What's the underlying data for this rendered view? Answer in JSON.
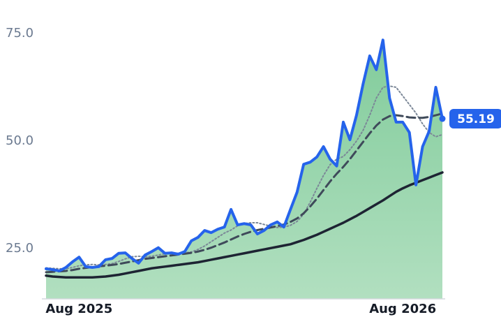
{
  "chart_data": {
    "type": "line",
    "categories": [
      null,
      null,
      null,
      null,
      null,
      "Aug 2025",
      null,
      null,
      null,
      null,
      null,
      null,
      null,
      null,
      null,
      null,
      null,
      null,
      null,
      null,
      null,
      null,
      null,
      null,
      null,
      null,
      null,
      null,
      null,
      null,
      null,
      null,
      null,
      null,
      null,
      null,
      null,
      null,
      null,
      null,
      null,
      null,
      null,
      null,
      null,
      null,
      null,
      null,
      null,
      null,
      null,
      null,
      null,
      null,
      "Aug 2026",
      null,
      null,
      null,
      null,
      null,
      null
    ],
    "series": [
      {
        "color": "#2563eb",
        "style": "solid",
        "width": 4,
        "area": true,
        "end_label": true,
        "values": [
          20.3,
          20.1,
          19.8,
          20.6,
          21.9,
          23.0,
          20.8,
          20.6,
          20.8,
          22.4,
          22.7,
          23.9,
          24.0,
          22.7,
          21.6,
          23.5,
          24.3,
          25.2,
          23.9,
          24.0,
          23.7,
          24.3,
          26.8,
          27.6,
          29.2,
          28.7,
          29.5,
          30.0,
          34.1,
          30.5,
          30.8,
          30.5,
          28.4,
          29.2,
          30.5,
          31.2,
          30.0,
          34.1,
          38.1,
          44.6,
          45.1,
          46.3,
          48.7,
          45.8,
          44.2,
          54.4,
          50.3,
          56.0,
          63.3,
          69.8,
          66.6,
          73.5,
          60.0,
          54.4,
          54.4,
          52.0,
          39.8,
          48.7,
          52.3,
          62.5,
          55.19
        ]
      },
      {
        "color": "#7b8797",
        "style": "dotted",
        "width": 2,
        "values": [
          20.5,
          20.4,
          20.3,
          20.3,
          20.6,
          21.0,
          21.2,
          21.3,
          21.2,
          21.3,
          21.5,
          22.0,
          22.6,
          23.1,
          23.2,
          23.1,
          23.2,
          23.5,
          23.8,
          23.9,
          23.9,
          24.0,
          24.2,
          24.8,
          25.6,
          26.6,
          27.6,
          28.6,
          29.3,
          30.3,
          30.8,
          31.0,
          31.0,
          30.6,
          30.2,
          29.9,
          30.0,
          30.4,
          31.3,
          33.0,
          35.8,
          39.0,
          42.0,
          44.5,
          45.8,
          46.4,
          48.0,
          50.0,
          52.5,
          56.0,
          60.0,
          62.5,
          62.8,
          62.5,
          60.5,
          58.5,
          56.5,
          54.0,
          52.0,
          51.0,
          51.5
        ]
      },
      {
        "color": "#3f4a5a",
        "style": "dashed",
        "width": 3,
        "values": [
          19.5,
          19.6,
          19.7,
          19.8,
          20.0,
          20.3,
          20.5,
          20.7,
          20.9,
          21.0,
          21.2,
          21.4,
          21.7,
          22.0,
          22.3,
          22.6,
          22.8,
          23.0,
          23.2,
          23.4,
          23.6,
          23.8,
          24.0,
          24.3,
          24.7,
          25.2,
          25.8,
          26.4,
          27.1,
          27.8,
          28.4,
          28.9,
          29.3,
          29.6,
          29.9,
          30.2,
          30.6,
          31.2,
          32.0,
          33.2,
          34.8,
          36.6,
          38.6,
          40.6,
          42.4,
          44.0,
          45.8,
          47.8,
          49.8,
          51.8,
          53.6,
          55.0,
          55.8,
          56.0,
          55.8,
          55.5,
          55.4,
          55.4,
          55.6,
          56.0,
          56.4
        ]
      },
      {
        "color": "#1e2433",
        "style": "solid",
        "width": 3.5,
        "values": [
          18.7,
          18.5,
          18.4,
          18.3,
          18.3,
          18.3,
          18.3,
          18.3,
          18.4,
          18.5,
          18.7,
          18.9,
          19.2,
          19.5,
          19.8,
          20.1,
          20.4,
          20.6,
          20.8,
          21.0,
          21.2,
          21.4,
          21.6,
          21.8,
          22.1,
          22.4,
          22.7,
          23.0,
          23.3,
          23.6,
          23.9,
          24.2,
          24.5,
          24.8,
          25.1,
          25.4,
          25.7,
          26.0,
          26.5,
          27.0,
          27.6,
          28.2,
          28.9,
          29.6,
          30.3,
          31.0,
          31.8,
          32.6,
          33.5,
          34.4,
          35.3,
          36.2,
          37.2,
          38.2,
          39.0,
          39.7,
          40.3,
          40.9,
          41.5,
          42.1,
          42.7
        ]
      }
    ],
    "ylim": [
      13.3,
      82.8
    ],
    "yticks": [
      {
        "value": 25,
        "label": "25.0"
      },
      {
        "value": 50,
        "label": "50.0"
      },
      {
        "value": 75,
        "label": "75.0"
      }
    ],
    "grid": false
  }
}
